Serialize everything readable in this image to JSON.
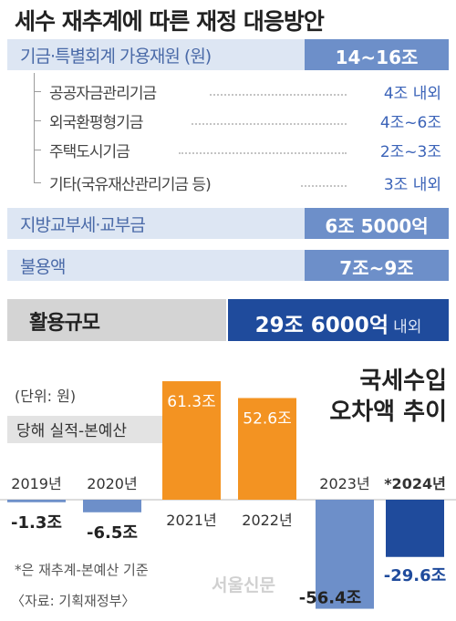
{
  "title": "세수 재추계에 따른 재정 대응방안",
  "fund_section": {
    "label": "기금·특별회계 가용재원 (원)",
    "value": "14~16조",
    "items": [
      {
        "label": "공공자금관리기금",
        "value": "4조 내외"
      },
      {
        "label": "외국환평형기금",
        "value": "4조~6조"
      },
      {
        "label": "주택도시기금",
        "value": "2조~3조"
      },
      {
        "label": "기타(국유재산관리기금 등)",
        "value": "3조 내외"
      }
    ]
  },
  "local_grants": {
    "label": "지방교부세·교부금",
    "value": "6조 5000억"
  },
  "unused": {
    "label": "불용액",
    "value": "7조~9조"
  },
  "total": {
    "label": "활용규모",
    "value": "29조 6000억",
    "suffix": "내외"
  },
  "colors": {
    "light_band": "#dde6f3",
    "mid_blue": "#6d8fc9",
    "dark_blue": "#1f4b9c",
    "orange": "#f39322",
    "total_gray": "#d4d4d4"
  },
  "chart_data": {
    "type": "bar",
    "title": "국세수입 오차액 추이",
    "unit_note": "(단위: 원)",
    "legend": "당해 실적-본예산",
    "categories": [
      "2019년",
      "2020년",
      "2021년",
      "2022년",
      "2023년",
      "*2024년"
    ],
    "values": [
      -1.3,
      -6.5,
      61.3,
      52.6,
      -56.4,
      -29.6
    ],
    "value_labels": [
      "-1.3조",
      "-6.5조",
      "61.3조",
      "52.6조",
      "-56.4조",
      "-29.6조"
    ],
    "bar_colors": [
      "#6d8fc9",
      "#6d8fc9",
      "#f39322",
      "#f39322",
      "#6d8fc9",
      "#1f4b9c"
    ],
    "footnote": "*은 재추계-본예산 기준",
    "source": "〈자료: 기획재정부〉",
    "watermark": "서울신문"
  }
}
